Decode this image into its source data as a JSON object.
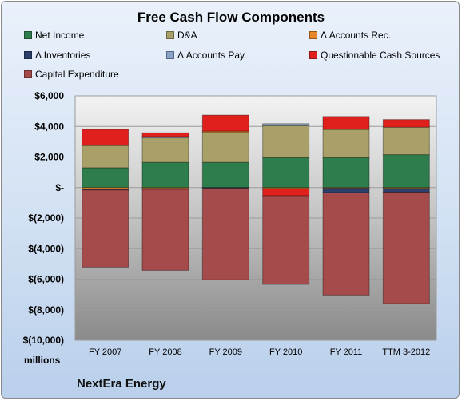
{
  "chart_data": {
    "type": "bar",
    "stacked": true,
    "title": "Free Cash Flow Components",
    "categories": [
      "FY 2007",
      "FY 2008",
      "FY 2009",
      "FY 2010",
      "FY 2011",
      "TTM 3-2012"
    ],
    "ylim": [
      -10000,
      6000
    ],
    "yticks": [
      6000,
      4000,
      2000,
      0,
      -2000,
      -4000,
      -6000,
      -8000,
      -10000
    ],
    "ytick_labels": [
      "$6,000",
      "$4,000",
      "$2,000",
      "$-",
      "$(2,000)",
      "$(4,000)",
      "$(6,000)",
      "$(8,000)",
      "$(10,000)"
    ],
    "ylabel_units": "millions",
    "grid": true,
    "legend_position": "top",
    "series": [
      {
        "name": "Net Income",
        "color": "#2e7d4c",
        "values": [
          1300,
          1650,
          1650,
          1950,
          1950,
          2150
        ]
      },
      {
        "name": "D&A",
        "color": "#a8a068",
        "values": [
          1450,
          1650,
          2000,
          2100,
          1850,
          1800
        ]
      },
      {
        "name": "Δ Accounts Rec.",
        "color": "#e8862a",
        "values": [
          -130,
          -60,
          40,
          -60,
          -40,
          -50
        ]
      },
      {
        "name": "Δ Inventories",
        "color": "#2b3f6a",
        "values": [
          -30,
          -60,
          -40,
          -30,
          -300,
          -250
        ]
      },
      {
        "name": "Δ Accounts Pay.",
        "color": "#8ba2c8",
        "values": [
          0,
          30,
          0,
          130,
          0,
          0
        ]
      },
      {
        "name": "Questionable Cash Sources",
        "color": "#e0201d",
        "values": [
          1050,
          250,
          1050,
          -450,
          850,
          500
        ]
      },
      {
        "name": "Capital Expenditure",
        "color": "#a64b4c",
        "values": [
          -5050,
          -5300,
          -6000,
          -5800,
          -6700,
          -7300
        ]
      }
    ]
  },
  "footer": {
    "units": "millions",
    "company": "NextEra Energy"
  }
}
